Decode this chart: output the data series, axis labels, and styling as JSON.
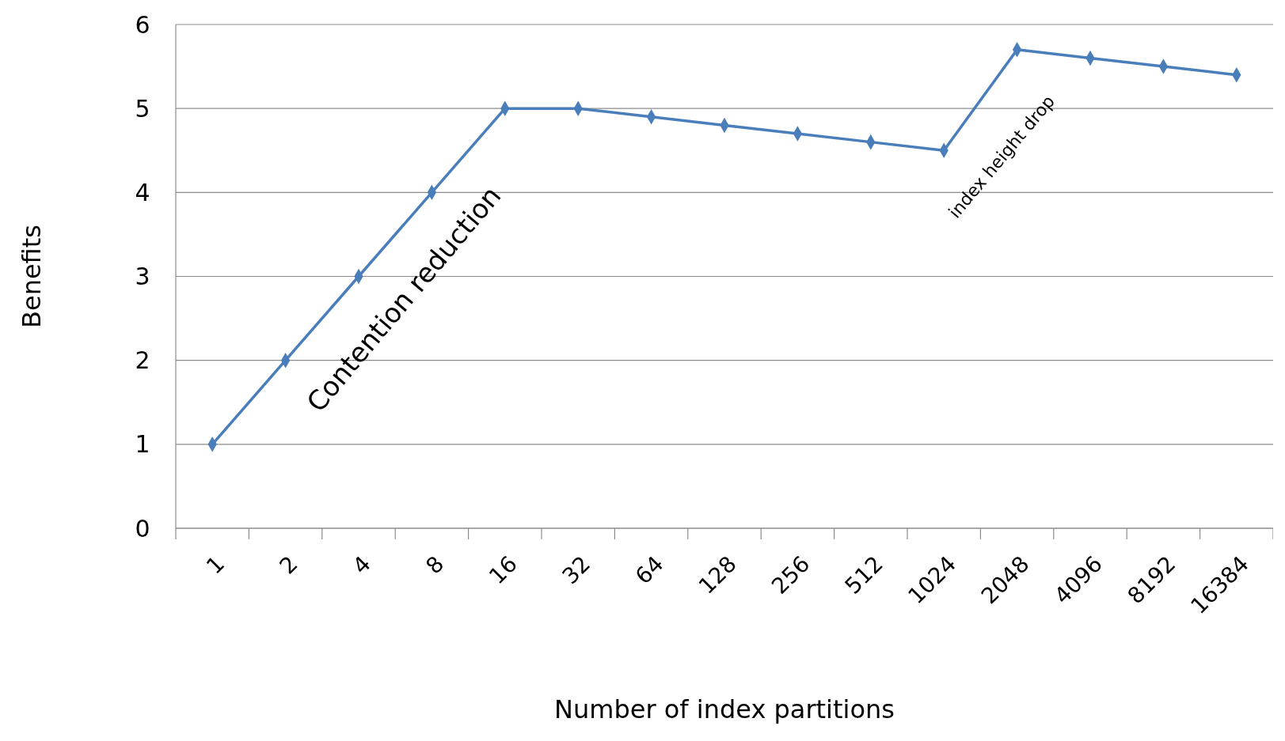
{
  "chart_data": {
    "type": "line",
    "xlabel": "Number of index partitions",
    "ylabel": "Benefits",
    "categories": [
      "1",
      "2",
      "4",
      "8",
      "16",
      "32",
      "64",
      "128",
      "256",
      "512",
      "1024",
      "2048",
      "4096",
      "8192",
      "16384"
    ],
    "series": [
      {
        "color": "#4a7ebb",
        "values": [
          1,
          2,
          3,
          4,
          5,
          5,
          4.9,
          4.8,
          4.7,
          4.6,
          4.5,
          5.7,
          5.6,
          5.5,
          5.4
        ]
      }
    ],
    "ylim": [
      0,
      6
    ],
    "yticks": [
      0,
      1,
      2,
      3,
      4,
      5,
      6
    ],
    "grid": "y",
    "marker": "diamond",
    "line_style": "solid",
    "annotations": [
      "Contention reduction",
      "index height drop"
    ]
  }
}
